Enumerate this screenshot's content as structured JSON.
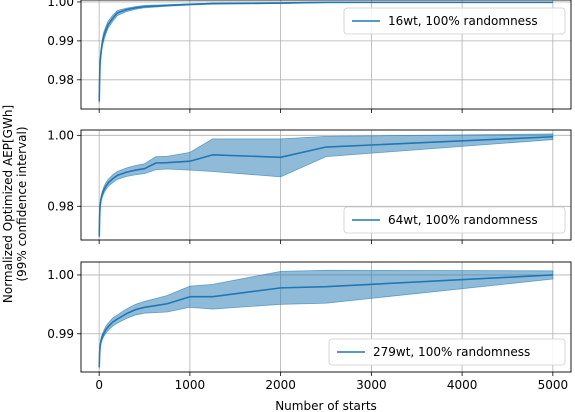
{
  "figure": {
    "ylabel_line1": "Normalized Optimized AEP[GWh]",
    "ylabel_line2": "(99% confidence interval)",
    "xlabel": "Number of starts"
  },
  "colors": {
    "line": "#1f77b4",
    "band": "#1f77b4",
    "grid": "#b0b0b0",
    "frame": "#000000"
  },
  "chart_data": [
    {
      "type": "line",
      "legend_label": "16wt, 100% randomness",
      "legend_position": "top-right",
      "grid": true,
      "xlim": [
        -200,
        5200
      ],
      "ylim": [
        0.9725,
        1.0005
      ],
      "x_ticks": [
        0,
        1000,
        2000,
        3000,
        4000,
        5000
      ],
      "x_tick_labels_shown": false,
      "y_ticks": [
        0.98,
        0.99,
        1.0
      ],
      "y_tick_labels": [
        "0.98",
        "0.99",
        "1.00"
      ],
      "x": [
        1,
        5,
        10,
        20,
        35,
        50,
        75,
        100,
        150,
        200,
        300,
        400,
        500,
        750,
        1000,
        1250,
        2000,
        2500,
        5000
      ],
      "y": [
        0.9745,
        0.98,
        0.9843,
        0.987,
        0.9895,
        0.9912,
        0.9928,
        0.9942,
        0.9958,
        0.9972,
        0.998,
        0.9985,
        0.9988,
        0.9991,
        0.9994,
        0.9996,
        0.9997,
        0.9999,
        0.9999
      ],
      "y_low": [
        0.974,
        0.9792,
        0.9835,
        0.986,
        0.9885,
        0.99,
        0.9918,
        0.9933,
        0.995,
        0.9965,
        0.9975,
        0.9981,
        0.9985,
        0.9989,
        0.9992,
        0.9994,
        0.9996,
        0.9998,
        0.9999
      ],
      "y_high": [
        0.975,
        0.9808,
        0.9851,
        0.988,
        0.9905,
        0.9922,
        0.9938,
        0.9951,
        0.9966,
        0.9978,
        0.9984,
        0.9988,
        0.9991,
        0.9993,
        0.9995,
        0.9997,
        0.9998,
        1.0,
        1.0
      ]
    },
    {
      "type": "line",
      "legend_label": "64wt, 100% randomness",
      "legend_position": "bottom-right",
      "grid": true,
      "xlim": [
        -200,
        5200
      ],
      "ylim": [
        0.9705,
        1.0015
      ],
      "x_ticks": [
        0,
        1000,
        2000,
        3000,
        4000,
        5000
      ],
      "x_tick_labels_shown": false,
      "y_ticks": [
        0.98,
        1.0
      ],
      "y_tick_labels": [
        "0.98",
        "1.00"
      ],
      "x": [
        1,
        5,
        10,
        20,
        35,
        50,
        75,
        100,
        150,
        200,
        300,
        400,
        500,
        625,
        750,
        1000,
        1250,
        2000,
        2500,
        5000
      ],
      "y": [
        0.9715,
        0.977,
        0.98,
        0.982,
        0.9834,
        0.9845,
        0.9857,
        0.9866,
        0.9878,
        0.9887,
        0.9896,
        0.9902,
        0.9906,
        0.9922,
        0.9923,
        0.9927,
        0.9945,
        0.9938,
        0.9967,
        0.9996
      ],
      "y_low": [
        0.9713,
        0.9764,
        0.9793,
        0.9812,
        0.9826,
        0.9836,
        0.9847,
        0.9856,
        0.9867,
        0.9876,
        0.9884,
        0.9889,
        0.9892,
        0.9903,
        0.9905,
        0.9902,
        0.9898,
        0.9883,
        0.994,
        0.9988
      ],
      "y_high": [
        0.9717,
        0.9776,
        0.9807,
        0.9828,
        0.9842,
        0.9854,
        0.9867,
        0.9876,
        0.9889,
        0.9898,
        0.9908,
        0.9915,
        0.992,
        0.994,
        0.9941,
        0.9952,
        0.999,
        0.999,
        0.9997,
        1.0004
      ]
    },
    {
      "type": "line",
      "legend_label": "279wt, 100% randomness",
      "legend_position": "bottom-right",
      "grid": true,
      "xlim": [
        -200,
        5200
      ],
      "ylim": [
        0.9835,
        1.0022
      ],
      "x_ticks": [
        0,
        1000,
        2000,
        3000,
        4000,
        5000
      ],
      "x_tick_labels": [
        "0",
        "1000",
        "2000",
        "3000",
        "4000",
        "5000"
      ],
      "x_tick_labels_shown": true,
      "y_ticks": [
        0.99,
        1.0
      ],
      "y_tick_labels": [
        "0.99",
        "1.00"
      ],
      "x": [
        1,
        5,
        10,
        20,
        35,
        50,
        75,
        100,
        150,
        200,
        300,
        400,
        500,
        625,
        750,
        1000,
        1250,
        2000,
        2500,
        5000
      ],
      "y": [
        0.9843,
        0.9866,
        0.9878,
        0.9888,
        0.9895,
        0.99,
        0.9907,
        0.9912,
        0.992,
        0.9925,
        0.9934,
        0.9941,
        0.9945,
        0.9948,
        0.9951,
        0.9963,
        0.9963,
        0.9978,
        0.998,
        1.0
      ],
      "y_low": [
        0.9841,
        0.9862,
        0.9874,
        0.9883,
        0.989,
        0.9895,
        0.9901,
        0.9906,
        0.9913,
        0.9918,
        0.9926,
        0.9932,
        0.9935,
        0.9936,
        0.9937,
        0.9945,
        0.9942,
        0.995,
        0.9952,
        0.9993
      ],
      "y_high": [
        0.9845,
        0.987,
        0.9882,
        0.9893,
        0.99,
        0.9905,
        0.9913,
        0.9918,
        0.9927,
        0.9932,
        0.9942,
        0.995,
        0.9955,
        0.996,
        0.9965,
        0.9981,
        0.9984,
        1.0006,
        1.0008,
        1.0007
      ]
    }
  ]
}
